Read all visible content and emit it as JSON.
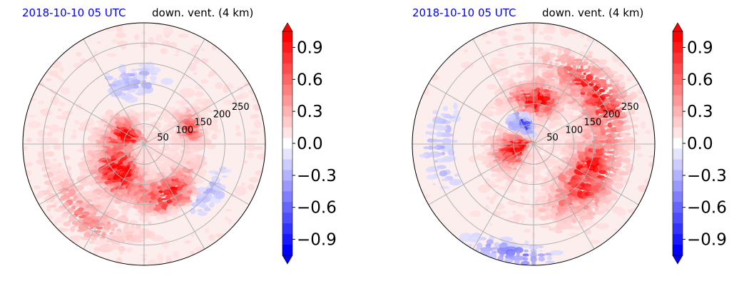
{
  "chart_data": [
    {
      "type": "heatmap",
      "projection": "polar",
      "title_time": "2018-10-10 05 UTC",
      "title_variable": "down. vent. (4 km)",
      "title_time_color": "#0000ff",
      "radial_ticks": [
        50,
        100,
        150,
        200,
        250
      ],
      "radial_max": 300,
      "grid": true,
      "colormap": "bwr",
      "colorbar": {
        "ticks": [
          "0.9",
          "0.6",
          "0.3",
          "0.0",
          "−0.3",
          "−0.6",
          "−0.9"
        ],
        "tick_values": [
          0.9,
          0.6,
          0.3,
          0.0,
          -0.3,
          -0.6,
          -0.9
        ],
        "range": [
          -1.05,
          1.05
        ],
        "extend": "both",
        "colors": {
          "min": "#0000ff",
          "mid": "#ffffff",
          "max": "#ff0000"
        }
      },
      "features": [
        {
          "angle": 160,
          "radius": 50,
          "spread": 35,
          "value": 0.95
        },
        {
          "angle": 230,
          "radius": 90,
          "spread": 40,
          "value": 0.95
        },
        {
          "angle": 300,
          "radius": 140,
          "spread": 30,
          "value": 0.9
        },
        {
          "angle": 100,
          "radius": 160,
          "spread": 35,
          "value": -0.35
        },
        {
          "angle": 230,
          "radius": 230,
          "spread": 30,
          "value": 0.4
        },
        {
          "angle": 20,
          "radius": 120,
          "spread": 20,
          "value": 0.6
        },
        {
          "angle": 320,
          "radius": 200,
          "spread": 30,
          "value": -0.3
        }
      ]
    },
    {
      "type": "heatmap",
      "projection": "polar",
      "title_time": "2018-10-10 05 UTC",
      "title_variable": "down. vent. (4 km)",
      "title_time_color": "#0000ff",
      "radial_ticks": [
        50,
        100,
        150,
        200,
        250
      ],
      "radial_max": 300,
      "grid": true,
      "colormap": "bwr",
      "colorbar": {
        "ticks": [
          "0.9",
          "0.6",
          "0.3",
          "0.0",
          "−0.3",
          "−0.6",
          "−0.9"
        ],
        "tick_values": [
          0.9,
          0.6,
          0.3,
          0.0,
          -0.3,
          -0.6,
          -0.9
        ],
        "range": [
          -1.05,
          1.05
        ],
        "extend": "both",
        "colors": {
          "min": "#0000ff",
          "mid": "#ffffff",
          "max": "#ff0000"
        }
      },
      "features": [
        {
          "angle": 200,
          "radius": 40,
          "spread": 40,
          "value": 0.95
        },
        {
          "angle": 90,
          "radius": 110,
          "spread": 30,
          "value": 0.9
        },
        {
          "angle": 40,
          "radius": 200,
          "spread": 35,
          "value": 0.85
        },
        {
          "angle": 330,
          "radius": 160,
          "spread": 40,
          "value": 0.85
        },
        {
          "angle": 120,
          "radius": 60,
          "spread": 25,
          "value": -0.8
        },
        {
          "angle": 180,
          "radius": 230,
          "spread": 40,
          "value": -0.3
        },
        {
          "angle": 260,
          "radius": 280,
          "spread": 25,
          "value": -0.5
        }
      ]
    }
  ]
}
